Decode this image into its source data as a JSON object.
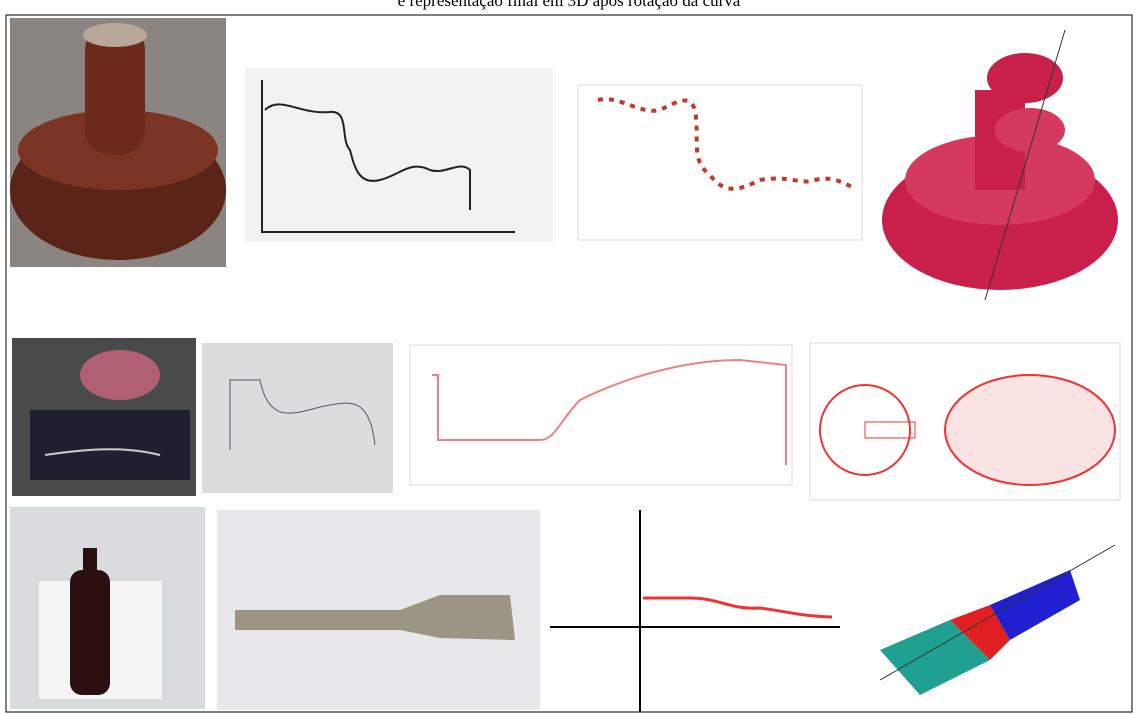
{
  "caption": "e representação final em 3D após rotação da curva"
}
